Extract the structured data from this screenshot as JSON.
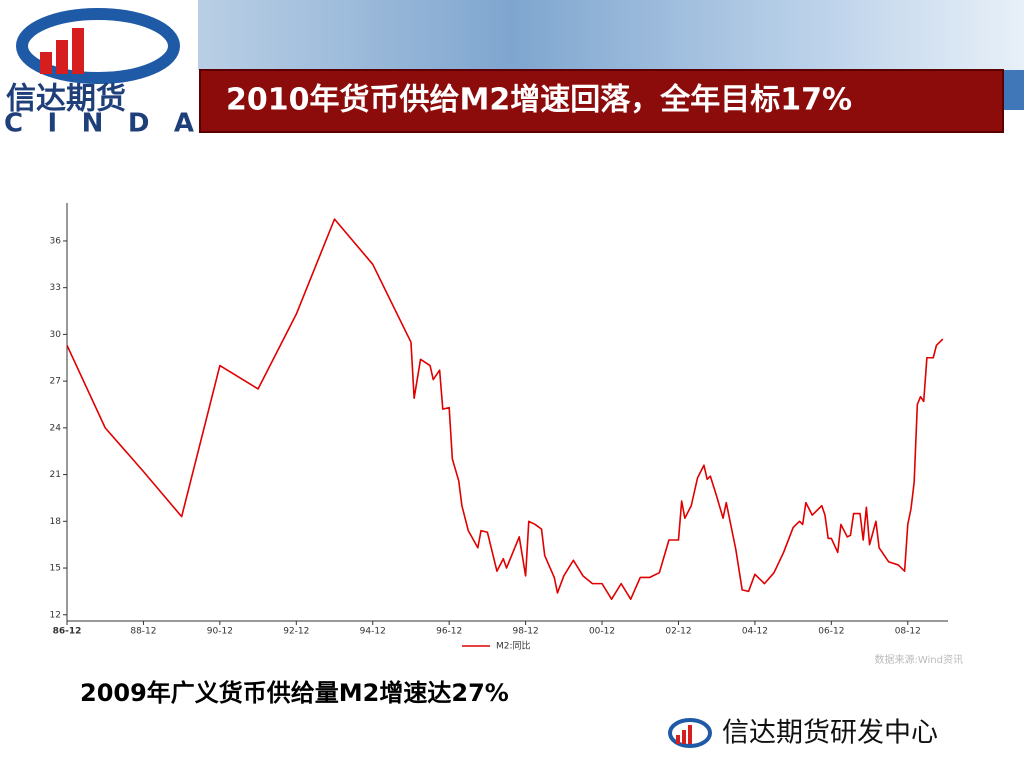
{
  "header": {
    "logo_text": "信达期货",
    "logo_brand": "CINDA",
    "title": "2010年货币供给M2增速回落，全年目标17%"
  },
  "chart_data": {
    "type": "line",
    "x": [
      "86-12",
      "87-12",
      "88-12",
      "89-12",
      "90-12",
      "91-12",
      "92-12",
      "93-12",
      "94-12",
      "95-12",
      "96-01",
      "96-03",
      "96-06",
      "96-07",
      "96-09",
      "96-10",
      "96-12",
      "97-01",
      "97-03",
      "97-04",
      "97-06",
      "97-09",
      "97-10",
      "97-12",
      "98-03",
      "98-05",
      "98-06",
      "98-09",
      "98-10",
      "98-12",
      "99-01",
      "99-03",
      "99-05",
      "99-06",
      "99-09",
      "99-10",
      "99-12",
      "00-03",
      "00-06",
      "00-09",
      "00-12",
      "01-03",
      "01-06",
      "01-09",
      "01-12",
      "02-03",
      "02-06",
      "02-09",
      "02-12",
      "03-01",
      "03-02",
      "03-04",
      "03-06",
      "03-08",
      "03-09",
      "03-10",
      "03-12",
      "04-02",
      "04-03",
      "04-06",
      "04-08",
      "04-10",
      "04-12",
      "05-03",
      "05-06",
      "05-09",
      "05-12",
      "06-02",
      "06-03",
      "06-04",
      "06-06",
      "06-09",
      "06-10",
      "06-11",
      "06-12",
      "07-02",
      "07-03",
      "07-05",
      "07-06",
      "07-07",
      "07-09",
      "07-10",
      "07-11",
      "07-12",
      "08-02",
      "08-03",
      "08-06",
      "08-09",
      "08-11",
      "08-12",
      "09-01",
      "09-02",
      "09-03",
      "09-04",
      "09-05",
      "09-06",
      "09-08",
      "09-09",
      "09-11"
    ],
    "series": [
      {
        "name": "M2:同比",
        "color": "#e00000",
        "values": [
          29.3,
          24.0,
          21.2,
          18.3,
          28.0,
          26.5,
          31.3,
          37.4,
          34.5,
          29.5,
          25.9,
          28.4,
          28.0,
          27.1,
          27.7,
          25.2,
          25.3,
          22.0,
          20.6,
          19.0,
          17.4,
          16.3,
          17.4,
          17.3,
          14.8,
          15.6,
          15.0,
          16.5,
          17.0,
          14.5,
          18.0,
          17.8,
          17.5,
          15.8,
          14.4,
          13.4,
          14.5,
          15.5,
          14.5,
          14.0,
          14.0,
          13.0,
          14.0,
          13.0,
          14.4,
          14.4,
          14.7,
          16.8,
          16.8,
          19.3,
          18.2,
          19.0,
          20.8,
          21.6,
          20.7,
          20.9,
          19.6,
          18.2,
          19.2,
          16.2,
          13.6,
          13.5,
          14.6,
          14.0,
          14.7,
          16.0,
          17.6,
          18.0,
          17.8,
          19.2,
          18.4,
          19.0,
          18.4,
          16.9,
          16.9,
          16.0,
          17.8,
          17.0,
          17.1,
          18.5,
          18.5,
          16.8,
          18.9,
          16.5,
          18.0,
          16.3,
          15.4,
          15.2,
          14.8,
          17.8,
          18.8,
          20.5,
          25.5,
          26.0,
          25.7,
          28.5,
          28.5,
          29.3,
          29.7
        ]
      }
    ],
    "xlim": [
      "86-12",
      "09-12"
    ],
    "xticks": [
      "86-12",
      "88-12",
      "90-12",
      "92-12",
      "94-12",
      "96-12",
      "98-12",
      "00-12",
      "02-12",
      "04-12",
      "06-12",
      "08-12"
    ],
    "ylim": [
      11.6,
      38.5
    ],
    "yticks": [
      12,
      15,
      18,
      21,
      24,
      27,
      30,
      33,
      36
    ],
    "legend": "bottom",
    "source": "数据来源:Wind资讯"
  },
  "caption": "2009年广义货币供给量M2增速达27%",
  "footer": "信达期货研发中心"
}
